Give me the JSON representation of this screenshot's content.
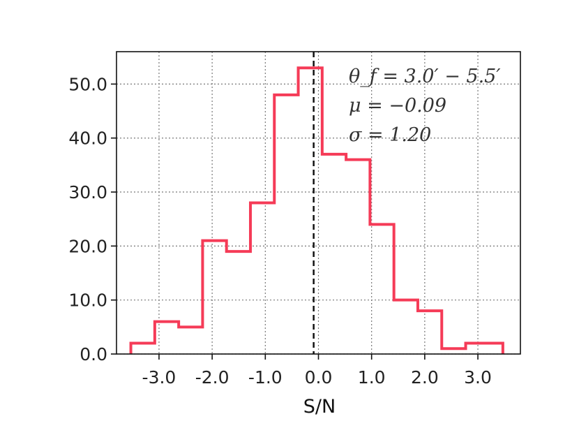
{
  "chart_data": {
    "type": "bar",
    "subtype": "step-histogram",
    "xlabel": "S/N",
    "ylabel": "",
    "xlim": [
      -3.8,
      3.8
    ],
    "ylim": [
      0,
      56
    ],
    "xticks": [
      -3.0,
      -2.0,
      -1.0,
      0.0,
      1.0,
      2.0,
      3.0
    ],
    "xtick_labels": [
      "-3.0",
      "-2.0",
      "-1.0",
      "0.0",
      "1.0",
      "2.0",
      "3.0"
    ],
    "yticks": [
      0,
      10,
      20,
      30,
      40,
      50
    ],
    "ytick_labels": [
      "0.0",
      "10.0",
      "20.0",
      "30.0",
      "40.0",
      "50.0"
    ],
    "grid": true,
    "bin_edges": [
      -3.53,
      -3.08,
      -2.63,
      -2.18,
      -1.73,
      -1.28,
      -0.83,
      -0.38,
      0.07,
      0.52,
      0.97,
      1.42,
      1.87,
      2.32,
      2.77,
      3.22,
      3.47
    ],
    "counts": [
      2,
      6,
      5,
      21,
      19,
      28,
      48,
      53,
      37,
      36,
      24,
      10,
      8,
      1,
      2,
      2
    ],
    "vline_x": -0.09,
    "series": [
      {
        "color": "#f53b57",
        "values": [
          2,
          6,
          5,
          21,
          19,
          28,
          48,
          53,
          37,
          36,
          24,
          10,
          8,
          1,
          2,
          2
        ]
      }
    ],
    "annotations": {
      "line1": "θ_f = 3.0′ − 5.5′",
      "line2": "μ = −0.09",
      "line3": "σ = 1.20"
    }
  }
}
